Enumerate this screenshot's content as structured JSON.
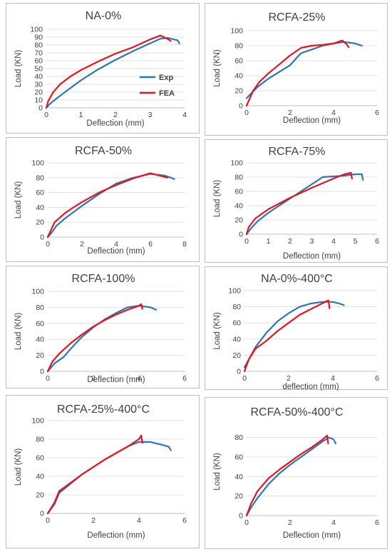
{
  "colors": {
    "exp": "#2e75b6",
    "fea": "#e8141c",
    "grid": "#d9d9d9",
    "axis": "#bfbfbf",
    "text": "#404040"
  },
  "chart_data": [
    {
      "type": "line",
      "title": "NA-0%",
      "xlabel": "Deflection (mm)",
      "ylabel": "Load (KN)",
      "xlim": [
        0,
        4
      ],
      "ylim": [
        0,
        100
      ],
      "xticks": [
        0,
        1,
        2,
        3,
        4
      ],
      "yticks": [
        0,
        10,
        20,
        30,
        40,
        50,
        60,
        70,
        80,
        90,
        100
      ],
      "grid": true,
      "legend": "right",
      "series": [
        {
          "name": "Exp",
          "x": [
            0,
            0.1,
            0.3,
            0.6,
            1.0,
            1.5,
            2.0,
            2.5,
            3.0,
            3.3,
            3.5,
            3.7,
            3.8,
            3.85
          ],
          "y": [
            0,
            5,
            12,
            22,
            35,
            49,
            61,
            72,
            82,
            88,
            89,
            87,
            86,
            82
          ]
        },
        {
          "name": "FEA",
          "x": [
            0,
            0.05,
            0.2,
            0.4,
            0.7,
            1.0,
            1.5,
            2.0,
            2.5,
            3.0,
            3.3,
            3.5,
            3.6
          ],
          "y": [
            0,
            8,
            20,
            30,
            40,
            48,
            59,
            69,
            77,
            87,
            92,
            88,
            85
          ]
        }
      ]
    },
    {
      "type": "line",
      "title": "RCFA-25%",
      "xlabel": "Deflection (mm)",
      "ylabel": "Load (KN)",
      "xlim": [
        0,
        6
      ],
      "ylim": [
        0,
        100
      ],
      "xticks": [
        0,
        2,
        4,
        6
      ],
      "yticks": [
        0,
        20,
        40,
        60,
        80,
        100
      ],
      "grid": true,
      "series": [
        {
          "name": "Exp",
          "x": [
            0,
            0.5,
            1.0,
            2.0,
            2.5,
            3.0,
            3.5,
            4.0,
            4.5,
            5.0,
            5.3
          ],
          "y": [
            10,
            25,
            36,
            54,
            70,
            75,
            80,
            83,
            85,
            83,
            80
          ]
        },
        {
          "name": "FEA",
          "x": [
            0,
            0.3,
            0.6,
            1.0,
            1.5,
            2.0,
            2.5,
            3.0,
            3.5,
            4.0,
            4.4,
            4.6,
            4.7
          ],
          "y": [
            0,
            20,
            32,
            43,
            55,
            67,
            77,
            80,
            81,
            83,
            87,
            82,
            78
          ]
        }
      ]
    },
    {
      "type": "line",
      "title": "RCFA-50%",
      "xlabel": "Deflection (mm)",
      "ylabel": "Load (KN)",
      "xlim": [
        0,
        8
      ],
      "ylim": [
        0,
        100
      ],
      "xticks": [
        0,
        2,
        4,
        6,
        8
      ],
      "yticks": [
        0,
        20,
        40,
        60,
        80,
        100
      ],
      "grid": true,
      "series": [
        {
          "name": "Exp",
          "x": [
            0,
            0.2,
            0.5,
            1.0,
            2.0,
            3.0,
            4.0,
            5.0,
            6.0,
            6.8,
            7.2,
            7.4
          ],
          "y": [
            0,
            5,
            15,
            25,
            42,
            58,
            72,
            80,
            85,
            83,
            80,
            78
          ]
        },
        {
          "name": "FEA",
          "x": [
            0,
            0.1,
            0.4,
            1.0,
            1.5,
            2.0,
            3.0,
            4.0,
            5.0,
            6.0,
            6.5,
            7.0
          ],
          "y": [
            0,
            5,
            20,
            32,
            40,
            47,
            60,
            70,
            79,
            86,
            83,
            80
          ]
        }
      ]
    },
    {
      "type": "line",
      "title": "RCFA-75%",
      "xlabel": "Deflection (mm)",
      "ylabel": "Load (KN)",
      "xlim": [
        0,
        6
      ],
      "ylim": [
        0,
        100
      ],
      "xticks": [
        0,
        1,
        2,
        3,
        4,
        5,
        6
      ],
      "yticks": [
        0,
        20,
        40,
        60,
        80,
        100
      ],
      "grid": true,
      "series": [
        {
          "name": "Exp",
          "x": [
            0,
            0.2,
            0.5,
            1.0,
            2.0,
            3.0,
            3.5,
            4.0,
            4.5,
            5.0,
            5.3,
            5.35
          ],
          "y": [
            0,
            8,
            18,
            30,
            50,
            70,
            80,
            81,
            82,
            84,
            84,
            76
          ]
        },
        {
          "name": "FEA",
          "x": [
            0,
            0.1,
            0.4,
            1.0,
            1.5,
            2.0,
            3.0,
            4.0,
            4.5,
            4.8,
            4.85
          ],
          "y": [
            0,
            10,
            22,
            35,
            43,
            51,
            65,
            78,
            84,
            86,
            78
          ]
        }
      ]
    },
    {
      "type": "line",
      "title": "RCFA-100%",
      "xlabel": "Deflection (mm)",
      "ylabel": "Load (KN)",
      "xlim": [
        0,
        6
      ],
      "ylim": [
        0,
        100
      ],
      "xticks": [
        0,
        2,
        4,
        6
      ],
      "yticks": [
        0,
        20,
        40,
        60,
        80,
        100
      ],
      "grid": true,
      "series": [
        {
          "name": "Exp",
          "x": [
            0,
            0.3,
            0.7,
            1.0,
            1.5,
            2.0,
            2.5,
            3.0,
            3.5,
            4.0,
            4.5,
            4.75
          ],
          "y": [
            0,
            10,
            18,
            28,
            43,
            55,
            65,
            73,
            80,
            82,
            80,
            77
          ]
        },
        {
          "name": "FEA",
          "x": [
            0,
            0.2,
            0.5,
            1.0,
            1.5,
            2.0,
            2.5,
            3.0,
            3.5,
            4.0,
            4.1,
            4.15
          ],
          "y": [
            0,
            12,
            22,
            35,
            46,
            56,
            64,
            71,
            77,
            82,
            84,
            78
          ]
        }
      ]
    },
    {
      "type": "line",
      "title": "NA-0%-400°C",
      "xlabel": "deflection (mm)",
      "ylabel": "Load (KN)",
      "xlim": [
        0,
        6
      ],
      "ylim": [
        0,
        100
      ],
      "xticks": [
        0,
        2,
        4,
        6
      ],
      "yticks": [
        0,
        20,
        40,
        60,
        80,
        100
      ],
      "grid": true,
      "series": [
        {
          "name": "Exp",
          "x": [
            0,
            0.2,
            0.5,
            1.0,
            1.5,
            2.0,
            2.5,
            3.0,
            3.5,
            4.0,
            4.3,
            4.5
          ],
          "y": [
            5,
            15,
            30,
            48,
            62,
            72,
            80,
            84,
            86,
            86,
            84,
            82
          ]
        },
        {
          "name": "FEA",
          "x": [
            0,
            0.2,
            0.5,
            1.0,
            1.5,
            2.0,
            2.5,
            3.0,
            3.5,
            3.8,
            3.85
          ],
          "y": [
            0,
            15,
            28,
            38,
            50,
            60,
            70,
            77,
            84,
            88,
            78
          ]
        }
      ]
    },
    {
      "type": "line",
      "title": "RCFA-25%-400°C",
      "xlabel": "Deflection (mm)",
      "ylabel": "Load  (KN)",
      "xlim": [
        0,
        6
      ],
      "ylim": [
        0,
        100
      ],
      "xticks": [
        0,
        2,
        4,
        6
      ],
      "yticks": [
        0,
        20,
        40,
        60,
        80,
        100
      ],
      "grid": true,
      "series": [
        {
          "name": "Exp",
          "x": [
            0,
            0.3,
            0.5,
            0.8,
            1.0,
            1.5,
            2.0,
            2.5,
            3.0,
            3.5,
            4.0,
            4.5,
            5.0,
            5.3,
            5.4
          ],
          "y": [
            0,
            10,
            22,
            28,
            32,
            42,
            50,
            58,
            65,
            72,
            77,
            77,
            74,
            72,
            68
          ]
        },
        {
          "name": "FEA",
          "x": [
            0,
            0.3,
            0.5,
            1.0,
            1.5,
            2.0,
            2.5,
            3.0,
            3.5,
            4.0,
            4.1,
            4.15
          ],
          "y": [
            0,
            12,
            24,
            33,
            42,
            50,
            58,
            65,
            72,
            80,
            84,
            76
          ]
        }
      ]
    },
    {
      "type": "line",
      "title": "RCFA-50%-400°C",
      "xlabel": "Deflection (mm)",
      "ylabel": "Load (KN)",
      "xlim": [
        0,
        6
      ],
      "ylim": [
        0,
        90
      ],
      "xticks": [
        0,
        2,
        4,
        6
      ],
      "yticks": [
        0,
        20,
        40,
        60,
        80
      ],
      "grid": true,
      "series": [
        {
          "name": "Exp",
          "x": [
            0,
            0.2,
            0.5,
            1.0,
            1.5,
            2.0,
            2.5,
            3.0,
            3.5,
            3.8,
            4.0,
            4.1
          ],
          "y": [
            0,
            8,
            18,
            32,
            43,
            52,
            60,
            68,
            76,
            80,
            78,
            74
          ]
        },
        {
          "name": "FEA",
          "x": [
            0,
            0.2,
            0.5,
            1.0,
            1.5,
            2.0,
            2.5,
            3.0,
            3.5,
            3.7,
            3.75
          ],
          "y": [
            0,
            12,
            25,
            38,
            47,
            55,
            63,
            70,
            78,
            82,
            74
          ]
        }
      ]
    }
  ]
}
